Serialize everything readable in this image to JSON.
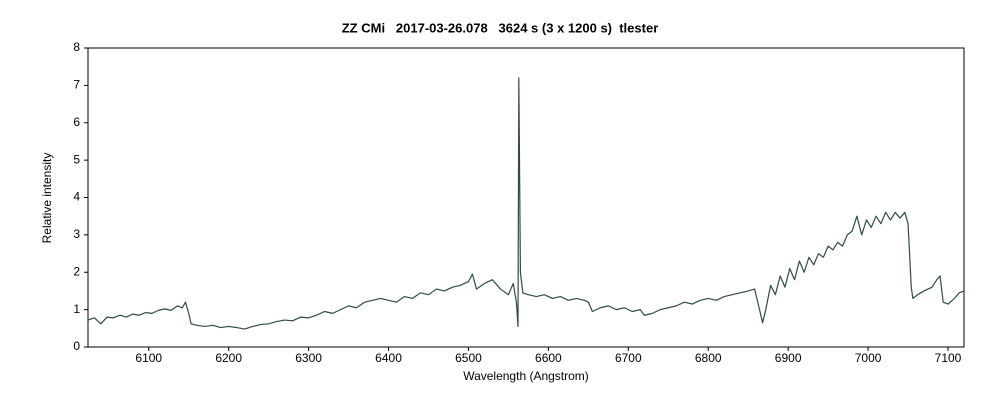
{
  "chart_data": {
    "type": "line",
    "title": "ZZ CMi   2017-03-26.078   3624 s (3 x 1200 s)  tlester",
    "x_label": "Wavelength (Angstrom)",
    "y_label": "Relative intensity",
    "xlim": [
      6024,
      7120
    ],
    "ylim": [
      0,
      8
    ],
    "xticks": [
      6100,
      6200,
      6300,
      6400,
      6500,
      6600,
      6700,
      6800,
      6900,
      7000,
      7100
    ],
    "yticks": [
      0,
      1,
      2,
      3,
      4,
      5,
      6,
      7,
      8
    ],
    "grid": false,
    "series": [
      {
        "name": "ZZ CMi",
        "color": "#2f4a4a",
        "x": [
          6024,
          6032,
          6040,
          6048,
          6056,
          6064,
          6072,
          6080,
          6088,
          6096,
          6104,
          6112,
          6120,
          6128,
          6136,
          6142,
          6146,
          6150,
          6153,
          6160,
          6170,
          6180,
          6190,
          6200,
          6210,
          6220,
          6230,
          6240,
          6250,
          6260,
          6270,
          6280,
          6290,
          6300,
          6310,
          6320,
          6330,
          6340,
          6350,
          6360,
          6370,
          6380,
          6390,
          6400,
          6410,
          6420,
          6430,
          6440,
          6450,
          6460,
          6470,
          6480,
          6490,
          6500,
          6505,
          6510,
          6520,
          6530,
          6540,
          6550,
          6556,
          6560,
          6562,
          6563,
          6565,
          6568,
          6575,
          6585,
          6595,
          6605,
          6615,
          6625,
          6635,
          6645,
          6650,
          6655,
          6665,
          6675,
          6685,
          6695,
          6705,
          6715,
          6720,
          6730,
          6740,
          6750,
          6760,
          6770,
          6780,
          6790,
          6800,
          6810,
          6820,
          6830,
          6840,
          6850,
          6858,
          6862,
          6868,
          6872,
          6878,
          6884,
          6890,
          6896,
          6902,
          6908,
          6914,
          6920,
          6926,
          6932,
          6938,
          6944,
          6950,
          6956,
          6962,
          6968,
          6974,
          6980,
          6986,
          6992,
          6998,
          7004,
          7010,
          7016,
          7022,
          7028,
          7034,
          7040,
          7046,
          7050,
          7054,
          7056,
          7062,
          7070,
          7080,
          7086,
          7090,
          7094,
          7100,
          7108,
          7114,
          7120
        ],
        "values": [
          0.72,
          0.78,
          0.62,
          0.8,
          0.78,
          0.85,
          0.8,
          0.88,
          0.85,
          0.92,
          0.9,
          0.98,
          1.02,
          0.98,
          1.1,
          1.05,
          1.2,
          0.9,
          0.62,
          0.58,
          0.55,
          0.58,
          0.52,
          0.55,
          0.52,
          0.48,
          0.55,
          0.6,
          0.62,
          0.68,
          0.72,
          0.7,
          0.8,
          0.78,
          0.85,
          0.95,
          0.9,
          1.0,
          1.1,
          1.05,
          1.2,
          1.25,
          1.3,
          1.25,
          1.2,
          1.35,
          1.3,
          1.45,
          1.4,
          1.55,
          1.5,
          1.6,
          1.65,
          1.75,
          1.95,
          1.55,
          1.7,
          1.8,
          1.55,
          1.4,
          1.7,
          1.2,
          0.55,
          7.2,
          2.0,
          1.45,
          1.4,
          1.35,
          1.4,
          1.3,
          1.35,
          1.25,
          1.3,
          1.25,
          1.2,
          0.95,
          1.05,
          1.1,
          1.0,
          1.05,
          0.95,
          1.0,
          0.85,
          0.9,
          1.0,
          1.05,
          1.1,
          1.2,
          1.15,
          1.25,
          1.3,
          1.25,
          1.35,
          1.4,
          1.45,
          1.5,
          1.55,
          1.2,
          0.65,
          1.0,
          1.65,
          1.4,
          1.9,
          1.6,
          2.1,
          1.8,
          2.3,
          2.0,
          2.4,
          2.2,
          2.5,
          2.4,
          2.7,
          2.6,
          2.8,
          2.7,
          3.0,
          3.1,
          3.5,
          3.0,
          3.4,
          3.2,
          3.5,
          3.3,
          3.6,
          3.4,
          3.6,
          3.45,
          3.6,
          3.3,
          1.6,
          1.3,
          1.4,
          1.5,
          1.6,
          1.8,
          1.9,
          1.2,
          1.15,
          1.3,
          1.45,
          1.5
        ]
      }
    ]
  }
}
